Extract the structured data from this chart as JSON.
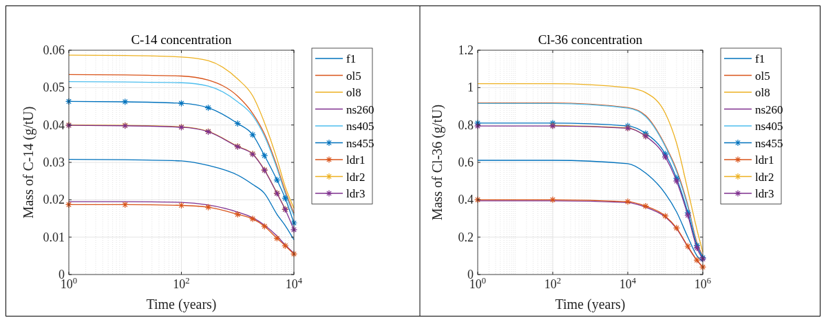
{
  "chart_data": [
    {
      "type": "line",
      "title": "C-14 concentration",
      "xlabel": "Time (years)",
      "ylabel": "Mass of C-14 (g/tU)",
      "log": "x",
      "grid": true,
      "legend": "right",
      "line_style": "solid",
      "x": [
        1,
        10,
        100,
        300,
        1000,
        1850,
        3000,
        5000,
        7000,
        10000
      ],
      "xlim": [
        1,
        10000
      ],
      "xticks": [
        {
          "value": 1,
          "label": "10$^{0}$"
        },
        {
          "value": 100,
          "label": "10$^{2}$"
        },
        {
          "value": 10000,
          "label": "10$^{4}$"
        }
      ],
      "ylim": [
        0,
        0.06
      ],
      "yticks": [
        0,
        0.01,
        0.02,
        0.03,
        0.04,
        0.05,
        0.06
      ],
      "series": [
        {
          "name": "f1",
          "color": "#0072bd",
          "marker": "none",
          "values": [
            0.0308,
            0.0307,
            0.0304,
            0.0292,
            0.0266,
            0.0241,
            0.0217,
            0.0161,
            0.0131,
            0.0093
          ]
        },
        {
          "name": "ol5",
          "color": "#d95319",
          "marker": "none",
          "values": [
            0.0535,
            0.0534,
            0.0531,
            0.052,
            0.0477,
            0.0431,
            0.0376,
            0.029,
            0.0223,
            0.0164
          ]
        },
        {
          "name": "ol8",
          "color": "#edb120",
          "marker": "none",
          "values": [
            0.0587,
            0.0586,
            0.0582,
            0.0572,
            0.0523,
            0.0478,
            0.0406,
            0.0309,
            0.0235,
            0.0177
          ]
        },
        {
          "name": "ns260",
          "color": "#7e2f8e",
          "marker": "none",
          "values": [
            0.0195,
            0.0195,
            0.0193,
            0.0186,
            0.0167,
            0.0152,
            0.0132,
            0.0103,
            0.0079,
            0.0057
          ]
        },
        {
          "name": "ns405",
          "color": "#4dbeee",
          "marker": "none",
          "values": [
            0.0516,
            0.0515,
            0.0513,
            0.0504,
            0.0462,
            0.0425,
            0.037,
            0.0284,
            0.0217,
            0.0158
          ]
        },
        {
          "name": "ns455",
          "color": "#0072bd",
          "marker": "cross",
          "values": [
            0.0463,
            0.0462,
            0.0458,
            0.0446,
            0.0404,
            0.0374,
            0.0318,
            0.0253,
            0.0204,
            0.0138
          ]
        },
        {
          "name": "ldr1",
          "color": "#d95319",
          "marker": "cross",
          "values": [
            0.0187,
            0.0187,
            0.0185,
            0.018,
            0.0161,
            0.0149,
            0.0129,
            0.0097,
            0.0077,
            0.0055
          ]
        },
        {
          "name": "ldr2",
          "color": "#edb120",
          "marker": "cross",
          "values": [
            0.04,
            0.0399,
            0.0395,
            0.0383,
            0.0343,
            0.0323,
            0.028,
            0.0218,
            0.0175,
            null
          ]
        },
        {
          "name": "ldr3",
          "color": "#7e2f8e",
          "marker": "cross",
          "values": [
            0.0399,
            0.0398,
            0.0394,
            0.0382,
            0.0342,
            0.0322,
            0.0279,
            0.0217,
            0.0174,
            0.012
          ]
        }
      ]
    },
    {
      "type": "line",
      "title": "Cl-36 concentration",
      "xlabel": "Time (years)",
      "ylabel": "Mass of Cl-36 (g/tU)",
      "log": "x",
      "grid": true,
      "legend": "right",
      "line_style": "solid",
      "x": [
        1,
        100,
        10000,
        30000,
        100000,
        200000,
        400000,
        700000,
        1000000
      ],
      "xlim": [
        1,
        1000000
      ],
      "xticks": [
        {
          "value": 1,
          "label": "10$^{0}$"
        },
        {
          "value": 100,
          "label": "10$^{2}$"
        },
        {
          "value": 10000,
          "label": "10$^{4}$"
        },
        {
          "value": 1000000,
          "label": "10$^{6}$"
        }
      ],
      "ylim": [
        0,
        1.2
      ],
      "yticks": [
        0,
        0.2,
        0.4,
        0.6,
        0.8,
        1,
        1.2
      ],
      "series": [
        {
          "name": "f1",
          "color": "#0072bd",
          "marker": "none",
          "values": [
            0.611,
            0.611,
            0.593,
            0.543,
            0.433,
            0.335,
            0.2,
            0.1,
            0.07
          ]
        },
        {
          "name": "ol5",
          "color": "#d95319",
          "marker": "none",
          "values": [
            0.918,
            0.918,
            0.893,
            0.85,
            0.691,
            0.56,
            0.37,
            0.17,
            0.1
          ]
        },
        {
          "name": "ol8",
          "color": "#edb120",
          "marker": "none",
          "values": [
            1.021,
            1.021,
            1.0,
            0.973,
            0.863,
            0.703,
            0.45,
            0.24,
            0.12
          ]
        },
        {
          "name": "ns260",
          "color": "#7e2f8e",
          "marker": "none",
          "values": [
            0.394,
            0.394,
            0.385,
            0.36,
            0.308,
            0.245,
            0.148,
            0.075,
            0.039
          ]
        },
        {
          "name": "ns405",
          "color": "#4dbeee",
          "marker": "none",
          "values": [
            0.915,
            0.915,
            0.89,
            0.845,
            0.685,
            0.55,
            0.36,
            0.16,
            0.095
          ]
        },
        {
          "name": "ns455",
          "color": "#0072bd",
          "marker": "cross",
          "values": [
            0.81,
            0.81,
            0.795,
            0.755,
            0.645,
            0.515,
            0.33,
            0.155,
            0.09
          ]
        },
        {
          "name": "ldr1",
          "color": "#d95319",
          "marker": "cross",
          "values": [
            0.4,
            0.4,
            0.39,
            0.366,
            0.313,
            0.249,
            0.151,
            0.077,
            0.04
          ]
        },
        {
          "name": "ldr2",
          "color": "#edb120",
          "marker": "cross",
          "values": [
            null,
            0.797,
            0.784,
            0.741,
            null,
            null,
            null,
            null,
            null
          ]
        },
        {
          "name": "ldr3",
          "color": "#7e2f8e",
          "marker": "cross",
          "values": [
            0.795,
            0.795,
            0.783,
            0.74,
            0.629,
            0.5,
            0.317,
            0.142,
            0.083
          ]
        }
      ]
    }
  ]
}
